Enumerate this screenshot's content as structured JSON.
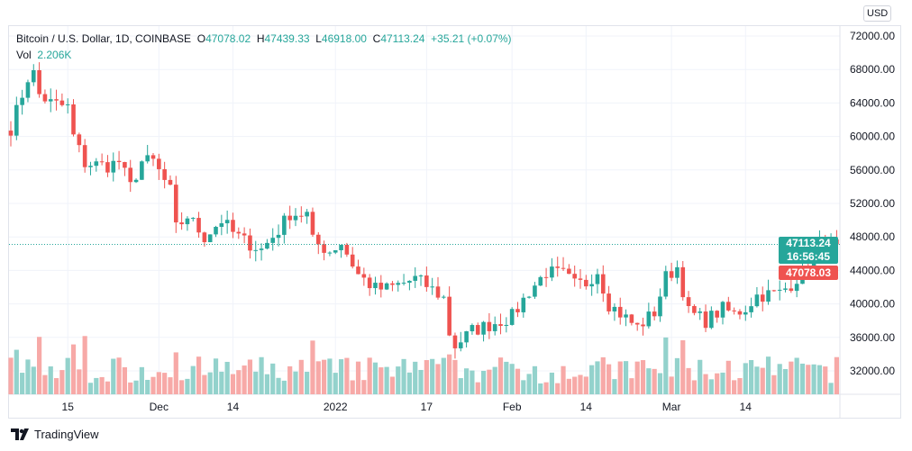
{
  "legend": {
    "symbol": "Bitcoin / U.S. Dollar, 1D, COINBASE",
    "o_label": "O",
    "open": "47078.02",
    "h_label": "H",
    "high": "47439.33",
    "l_label": "L",
    "low": "46918.00",
    "c_label": "C",
    "close": "47113.24",
    "change": "+35.21 (+0.07%)",
    "vol_label": "Vol",
    "vol": "2.206K"
  },
  "currency": "USD",
  "price_axis": [
    "72000.00",
    "68000.00",
    "64000.00",
    "60000.00",
    "56000.00",
    "52000.00",
    "48000.00",
    "44000.00",
    "40000.00",
    "36000.00",
    "32000.00"
  ],
  "price_axis_values": [
    72000,
    68000,
    64000,
    60000,
    56000,
    52000,
    48000,
    44000,
    40000,
    36000,
    32000
  ],
  "time_axis": [
    {
      "label": "15",
      "day": 10
    },
    {
      "label": "Dec",
      "day": 26
    },
    {
      "label": "14",
      "day": 39
    },
    {
      "label": "2022",
      "day": 57
    },
    {
      "label": "17",
      "day": 73
    },
    {
      "label": "Feb",
      "day": 88
    },
    {
      "label": "14",
      "day": 101
    },
    {
      "label": "Mar",
      "day": 116
    },
    {
      "label": "14",
      "day": 129
    }
  ],
  "last_price": {
    "price": "47113.24",
    "value": 47113.24,
    "countdown": "16:56:45",
    "prev": "47078.03"
  },
  "colors": {
    "up": "#26a69a",
    "down": "#ef5350",
    "up_vol": "#93d2cc",
    "down_vol": "#f7a9a7"
  },
  "chart_data": {
    "type": "candlestick",
    "symbol": "BTCUSD",
    "ylim": [
      30000,
      73500
    ],
    "close_keypoints": [
      [
        0,
        61000
      ],
      [
        3,
        67000
      ],
      [
        4,
        67500
      ],
      [
        5,
        65000
      ],
      [
        7,
        64000
      ],
      [
        10,
        63500
      ],
      [
        11,
        60000
      ],
      [
        13,
        56800
      ],
      [
        17,
        56500
      ],
      [
        19,
        57000
      ],
      [
        21,
        54000
      ],
      [
        23,
        57000
      ],
      [
        25,
        57000
      ],
      [
        28,
        53500
      ],
      [
        29,
        49000
      ],
      [
        31,
        50500
      ],
      [
        34,
        48000
      ],
      [
        37,
        50000
      ],
      [
        39,
        48500
      ],
      [
        41,
        47500
      ],
      [
        44,
        46500
      ],
      [
        47,
        48800
      ],
      [
        49,
        50800
      ],
      [
        52,
        50700
      ],
      [
        53,
        47500
      ],
      [
        56,
        46300
      ],
      [
        58,
        47300
      ],
      [
        61,
        43500
      ],
      [
        64,
        41800
      ],
      [
        66,
        41800
      ],
      [
        69,
        42500
      ],
      [
        71,
        43000
      ],
      [
        73,
        42200
      ],
      [
        76,
        40700
      ],
      [
        77,
        36500
      ],
      [
        78,
        35000
      ],
      [
        81,
        36800
      ],
      [
        84,
        37500
      ],
      [
        88,
        38500
      ],
      [
        91,
        41500
      ],
      [
        94,
        43800
      ],
      [
        97,
        43500
      ],
      [
        99,
        42300
      ],
      [
        101,
        42500
      ],
      [
        103,
        44000
      ],
      [
        105,
        40000
      ],
      [
        108,
        38300
      ],
      [
        110,
        37200
      ],
      [
        113,
        39000
      ],
      [
        115,
        43200
      ],
      [
        117,
        44400
      ],
      [
        119,
        39000
      ],
      [
        122,
        38000
      ],
      [
        125,
        39400
      ],
      [
        127,
        38800
      ],
      [
        129,
        39500
      ],
      [
        131,
        41000
      ],
      [
        135,
        41300
      ],
      [
        137,
        42400
      ],
      [
        140,
        44500
      ],
      [
        142,
        46800
      ],
      [
        145,
        47113
      ]
    ]
  },
  "footer": {
    "brand": "TradingView"
  }
}
